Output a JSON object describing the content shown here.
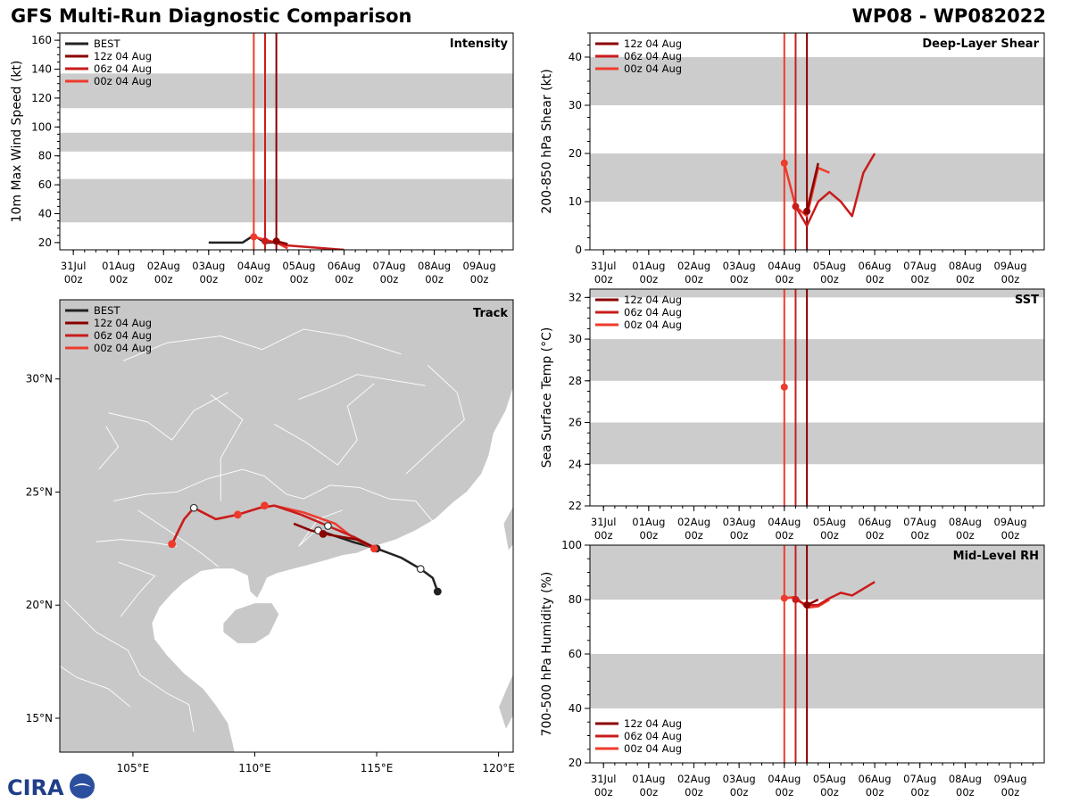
{
  "header": {
    "title": "GFS Multi-Run Diagnostic Comparison",
    "storm_id": "WP08 - WP082022"
  },
  "logo_text": "CIRA",
  "colors": {
    "BEST": "#222222",
    "12z 04 Aug": "#8b0000",
    "06z 04 Aug": "#c91c1c",
    "00z 04 Aug": "#ef3b2c",
    "band": "#cccccc",
    "land": "#c8c8c8"
  },
  "time_ticks": [
    {
      "day": 0,
      "label": "31Jul"
    },
    {
      "day": 1,
      "label": "01Aug"
    },
    {
      "day": 2,
      "label": "02Aug"
    },
    {
      "day": 3,
      "label": "03Aug"
    },
    {
      "day": 4,
      "label": "04Aug"
    },
    {
      "day": 5,
      "label": "05Aug"
    },
    {
      "day": 6,
      "label": "06Aug"
    },
    {
      "day": 7,
      "label": "07Aug"
    },
    {
      "day": 8,
      "label": "08Aug"
    },
    {
      "day": 9,
      "label": "09Aug"
    }
  ],
  "time_sublabel": "00z",
  "chart_data": [
    {
      "id": "intensity",
      "type": "line",
      "title": "Intensity",
      "ylabel": "10m Max Wind Speed (kt)",
      "xlabel": "",
      "xlim": [
        -0.3,
        9.75
      ],
      "ylim": [
        15,
        165
      ],
      "yticks": [
        20,
        40,
        60,
        80,
        100,
        120,
        140,
        160
      ],
      "bands": [
        [
          34,
          64
        ],
        [
          83,
          96
        ],
        [
          113,
          137
        ]
      ],
      "legend": [
        "BEST",
        "12z 04 Aug",
        "06z 04 Aug",
        "00z 04 Aug"
      ],
      "init_lines": [
        {
          "name": "00z 04 Aug",
          "x": 4.0
        },
        {
          "name": "06z 04 Aug",
          "x": 4.25
        },
        {
          "name": "12z 04 Aug",
          "x": 4.5
        }
      ],
      "series": [
        {
          "name": "BEST",
          "x": [
            3.0,
            3.25,
            3.5,
            3.75,
            4.0,
            4.25,
            4.5
          ],
          "y": [
            20,
            20,
            20,
            20,
            25,
            20,
            20
          ],
          "markers": []
        },
        {
          "name": "00z 04 Aug",
          "x": [
            4.0,
            4.25,
            4.5,
            4.75
          ],
          "y": [
            24,
            22,
            20,
            16
          ],
          "markers": [
            4.0
          ]
        },
        {
          "name": "06z 04 Aug",
          "x": [
            4.25,
            4.5,
            4.75,
            6.0
          ],
          "y": [
            21,
            20,
            18,
            15
          ],
          "markers": [
            4.25
          ]
        },
        {
          "name": "12z 04 Aug",
          "x": [
            4.5,
            4.75
          ],
          "y": [
            21,
            19
          ],
          "markers": [
            4.5
          ]
        }
      ]
    },
    {
      "id": "shear",
      "type": "line",
      "title": "Deep-Layer Shear",
      "ylabel": "200-850 hPa Shear (kt)",
      "xlabel": "",
      "xlim": [
        -0.3,
        9.75
      ],
      "ylim": [
        0,
        45
      ],
      "yticks": [
        0,
        10,
        20,
        30,
        40
      ],
      "bands": [
        [
          10,
          20
        ],
        [
          30,
          40
        ]
      ],
      "legend": [
        "12z 04 Aug",
        "06z 04 Aug",
        "00z 04 Aug"
      ],
      "init_lines": [
        {
          "name": "00z 04 Aug",
          "x": 4.0
        },
        {
          "name": "06z 04 Aug",
          "x": 4.25
        },
        {
          "name": "12z 04 Aug",
          "x": 4.5
        }
      ],
      "series": [
        {
          "name": "00z 04 Aug",
          "x": [
            4.0,
            4.25,
            4.5,
            4.75,
            5.0
          ],
          "y": [
            18,
            9,
            7,
            17,
            16
          ],
          "markers": [
            4.0
          ]
        },
        {
          "name": "06z 04 Aug",
          "x": [
            4.25,
            4.5,
            4.75,
            5.0,
            5.25,
            5.5,
            5.75,
            6.0
          ],
          "y": [
            9,
            5,
            10,
            12,
            10,
            7,
            16,
            20
          ],
          "markers": [
            4.25
          ]
        },
        {
          "name": "12z 04 Aug",
          "x": [
            4.5,
            4.75
          ],
          "y": [
            8,
            18
          ],
          "markers": [
            4.5
          ]
        }
      ]
    },
    {
      "id": "sst",
      "type": "line",
      "title": "SST",
      "ylabel": "Sea Surface Temp (°C)",
      "xlabel": "",
      "xlim": [
        -0.3,
        9.75
      ],
      "ylim": [
        22,
        32.4
      ],
      "yticks": [
        22,
        24,
        26,
        28,
        30,
        32
      ],
      "bands": [
        [
          24,
          26
        ],
        [
          28,
          30
        ],
        [
          32,
          32.4
        ]
      ],
      "legend": [
        "12z 04 Aug",
        "06z 04 Aug",
        "00z 04 Aug"
      ],
      "init_lines": [
        {
          "name": "00z 04 Aug",
          "x": 4.0
        },
        {
          "name": "06z 04 Aug",
          "x": 4.25
        },
        {
          "name": "12z 04 Aug",
          "x": 4.5
        }
      ],
      "series": [
        {
          "name": "00z 04 Aug",
          "x": [
            4.0
          ],
          "y": [
            27.7
          ],
          "markers": [
            4.0
          ]
        }
      ]
    },
    {
      "id": "rh",
      "type": "line",
      "title": "Mid-Level RH",
      "ylabel": "700-500 hPa Humidity (%)",
      "xlabel": "",
      "xlim": [
        -0.3,
        9.75
      ],
      "ylim": [
        20,
        100
      ],
      "yticks": [
        20,
        40,
        60,
        80,
        100
      ],
      "bands": [
        [
          40,
          60
        ],
        [
          80,
          100
        ]
      ],
      "legend": [
        "12z 04 Aug",
        "06z 04 Aug",
        "00z 04 Aug"
      ],
      "init_lines": [
        {
          "name": "00z 04 Aug",
          "x": 4.0
        },
        {
          "name": "06z 04 Aug",
          "x": 4.25
        },
        {
          "name": "12z 04 Aug",
          "x": 4.5
        }
      ],
      "series": [
        {
          "name": "00z 04 Aug",
          "x": [
            4.0,
            4.25,
            4.5,
            4.75,
            5.0
          ],
          "y": [
            80.5,
            81,
            77,
            77.5,
            80
          ],
          "markers": [
            4.0
          ]
        },
        {
          "name": "06z 04 Aug",
          "x": [
            4.25,
            4.5,
            4.75,
            5.0,
            5.25,
            5.5,
            5.75,
            6.0
          ],
          "y": [
            80,
            78,
            78,
            80.5,
            82.5,
            81.5,
            84,
            86.5
          ],
          "markers": [
            4.25
          ]
        },
        {
          "name": "12z 04 Aug",
          "x": [
            4.5,
            4.75
          ],
          "y": [
            78,
            80
          ],
          "markers": [
            4.5
          ]
        }
      ]
    },
    {
      "id": "track",
      "type": "line",
      "title": "Track",
      "xlabel": "",
      "ylabel": "",
      "xlim": [
        102.0,
        120.6
      ],
      "ylim": [
        13.5,
        33.5
      ],
      "xticks": [
        105,
        110,
        115,
        120
      ],
      "xtick_labels": [
        "105°E",
        "110°E",
        "115°E",
        "120°E"
      ],
      "yticks": [
        15,
        20,
        25,
        30
      ],
      "ytick_labels": [
        "15°N",
        "20°N",
        "25°N",
        "30°N"
      ],
      "legend": [
        "BEST",
        "12z 04 Aug",
        "06z 04 Aug",
        "00z 04 Aug"
      ],
      "series": [
        {
          "name": "BEST",
          "lon": [
            117.5,
            117.3,
            116.8,
            116.0,
            115.0,
            114.0,
            112.9
          ],
          "lat": [
            20.6,
            21.2,
            21.6,
            22.1,
            22.5,
            22.8,
            23.2
          ],
          "markers": [
            {
              "lon": 117.5,
              "lat": 20.6,
              "style": "filled"
            },
            {
              "lon": 116.8,
              "lat": 21.6,
              "style": "open"
            },
            {
              "lon": 115.0,
              "lat": 22.5,
              "style": "filled"
            }
          ]
        },
        {
          "name": "00z 04 Aug",
          "lon": [
            114.9,
            114.0,
            113.3,
            112.0,
            110.8,
            110.2,
            109.3,
            108.4,
            107.5,
            107.1,
            106.6
          ],
          "lat": [
            22.5,
            23.0,
            23.6,
            24.1,
            24.4,
            24.3,
            24.0,
            23.8,
            24.3,
            23.8,
            22.7
          ],
          "markers": [
            {
              "lon": 114.9,
              "lat": 22.5,
              "style": "filled"
            },
            {
              "lon": 110.4,
              "lat": 24.4,
              "style": "filled"
            },
            {
              "lon": 109.3,
              "lat": 24.0,
              "style": "filled"
            },
            {
              "lon": 107.5,
              "lat": 24.3,
              "style": "open"
            },
            {
              "lon": 106.6,
              "lat": 22.7,
              "style": "filled"
            }
          ]
        },
        {
          "name": "06z 04 Aug",
          "lon": [
            115.0,
            114.1,
            113.0,
            111.9,
            110.8,
            110.2,
            109.3,
            108.4,
            107.5,
            107.1,
            106.6
          ],
          "lat": [
            22.5,
            23.0,
            23.5,
            24.0,
            24.4,
            24.3,
            24.0,
            23.8,
            24.3,
            23.8,
            22.7
          ],
          "markers": [
            {
              "lon": 113.0,
              "lat": 23.5,
              "style": "open"
            },
            {
              "lon": 112.6,
              "lat": 23.3,
              "style": "open"
            }
          ]
        },
        {
          "name": "12z 04 Aug",
          "lon": [
            115.0,
            114.2,
            113.1,
            112.3,
            111.6
          ],
          "lat": [
            22.5,
            22.9,
            23.1,
            23.3,
            23.6
          ],
          "markers": [
            {
              "lon": 112.8,
              "lat": 23.15,
              "style": "filled"
            }
          ]
        }
      ]
    }
  ]
}
